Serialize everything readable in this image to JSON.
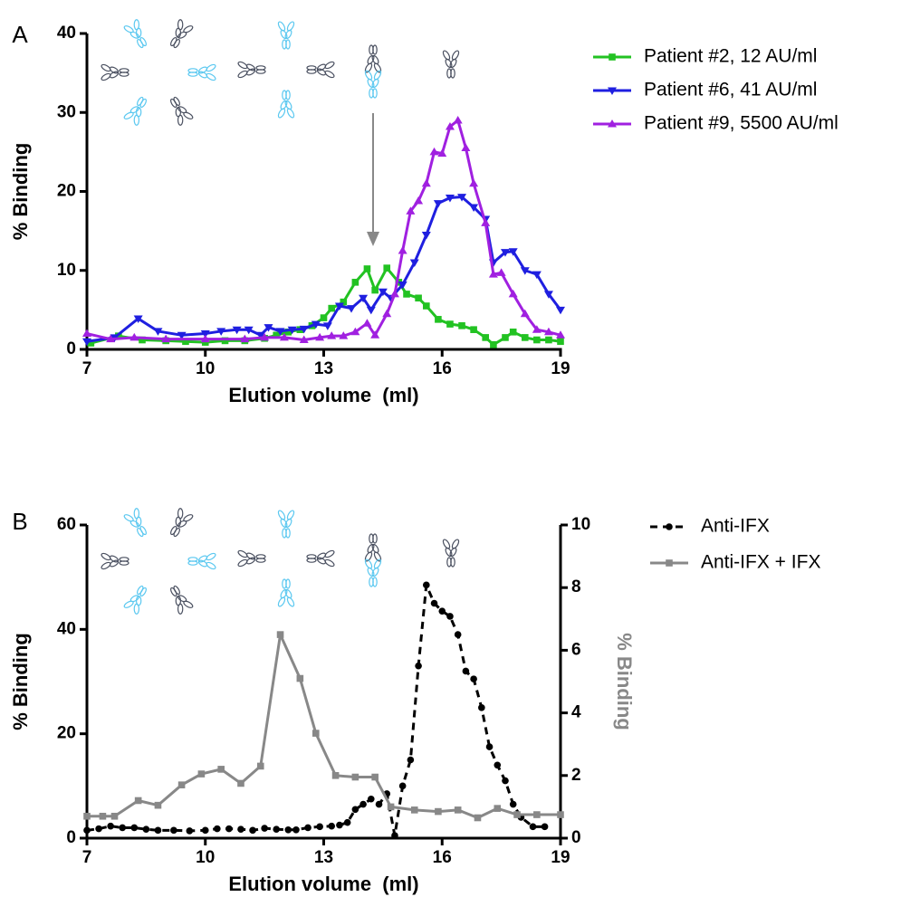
{
  "chart_data": [
    {
      "type": "line",
      "panel_label": "A",
      "x_label": "Elution volume  (ml)",
      "y_label": "% Binding",
      "xlim": [
        7,
        19
      ],
      "xticks": [
        7,
        10,
        13,
        16,
        19
      ],
      "ylim": [
        0,
        40
      ],
      "yticks": [
        0,
        10,
        20,
        30,
        40
      ],
      "legend": "upper right",
      "series": [
        {
          "name": "Patient #2, 12 AU/ml",
          "color": "#22c222",
          "marker": "square",
          "line_style": "solid",
          "x": [
            7.1,
            7.8,
            8.4,
            9.0,
            9.5,
            10.0,
            10.5,
            11.0,
            11.5,
            11.8,
            12.1,
            12.4,
            12.7,
            13.0,
            13.2,
            13.5,
            13.8,
            14.1,
            14.3,
            14.6,
            14.9,
            15.1,
            15.4,
            15.6,
            15.9,
            16.2,
            16.5,
            16.8,
            17.1,
            17.3,
            17.6,
            17.8,
            18.1,
            18.4,
            18.7,
            19.0
          ],
          "values": [
            0.8,
            1.7,
            1.2,
            1.1,
            1.0,
            0.9,
            1.1,
            1.1,
            1.4,
            1.8,
            2.2,
            2.5,
            3.0,
            4.0,
            5.2,
            6.0,
            8.5,
            10.2,
            7.5,
            10.3,
            8.5,
            7.0,
            6.5,
            5.5,
            3.8,
            3.2,
            3.0,
            2.5,
            1.5,
            0.6,
            1.5,
            2.2,
            1.5,
            1.2,
            1.2,
            1.0
          ]
        },
        {
          "name": "Patient #6, 41 AU/ml",
          "color": "#1f1fe0",
          "marker": "triangle-down",
          "line_style": "solid",
          "x": [
            7.0,
            7.7,
            8.3,
            8.8,
            9.4,
            10.0,
            10.4,
            10.8,
            11.1,
            11.4,
            11.6,
            11.9,
            12.2,
            12.5,
            12.8,
            13.1,
            13.4,
            13.7,
            14.0,
            14.2,
            14.5,
            14.7,
            15.0,
            15.3,
            15.6,
            15.9,
            16.2,
            16.5,
            16.8,
            17.1,
            17.3,
            17.6,
            17.8,
            18.1,
            18.4,
            18.7,
            19.0
          ],
          "values": [
            1.0,
            1.5,
            3.9,
            2.3,
            1.8,
            2.0,
            2.3,
            2.5,
            2.5,
            1.8,
            2.8,
            2.3,
            2.5,
            2.6,
            3.2,
            3.0,
            5.5,
            5.2,
            6.5,
            5.0,
            7.3,
            6.5,
            8.2,
            11.0,
            14.5,
            18.5,
            19.2,
            19.3,
            18.0,
            16.5,
            11.0,
            12.3,
            12.4,
            10.0,
            9.5,
            7.0,
            5.0
          ]
        },
        {
          "name": "Patient #9, 5500 AU/ml",
          "color": "#a020e0",
          "marker": "triangle-up",
          "line_style": "solid",
          "x": [
            7.0,
            7.6,
            8.2,
            9.0,
            10.0,
            11.0,
            11.5,
            12.0,
            12.5,
            12.9,
            13.2,
            13.5,
            13.8,
            14.1,
            14.3,
            14.6,
            14.8,
            15.0,
            15.2,
            15.4,
            15.6,
            15.8,
            16.0,
            16.2,
            16.4,
            16.6,
            16.8,
            17.1,
            17.3,
            17.5,
            17.8,
            18.1,
            18.4,
            18.7,
            19.0
          ],
          "values": [
            2.0,
            1.3,
            1.5,
            1.3,
            1.3,
            1.3,
            1.5,
            1.5,
            1.2,
            1.5,
            1.7,
            1.7,
            2.2,
            3.3,
            1.8,
            4.5,
            7.0,
            12.5,
            17.5,
            18.8,
            21.0,
            25.0,
            24.8,
            28.2,
            29.0,
            25.5,
            21.0,
            16.0,
            9.5,
            9.7,
            7.0,
            4.5,
            2.5,
            2.2,
            1.8
          ]
        }
      ]
    },
    {
      "type": "line",
      "panel_label": "B",
      "x_label": "Elution volume  (ml)",
      "y_label": "% Binding",
      "y2_label": "% Binding",
      "xlim": [
        7,
        19
      ],
      "xticks": [
        7,
        10,
        13,
        16,
        19
      ],
      "ylim": [
        0,
        60
      ],
      "yticks": [
        0,
        20,
        40,
        60
      ],
      "y2lim": [
        0,
        10
      ],
      "y2ticks": [
        0,
        2,
        4,
        6,
        8,
        10
      ],
      "y2_color": "#888888",
      "legend": "upper right",
      "series": [
        {
          "name": "Anti-IFX",
          "color": "#000000",
          "marker": "circle",
          "line_style": "dashed",
          "x": [
            7.0,
            7.3,
            7.6,
            7.9,
            8.2,
            8.5,
            8.8,
            9.2,
            9.6,
            10.0,
            10.3,
            10.6,
            10.9,
            11.2,
            11.5,
            11.8,
            12.1,
            12.3,
            12.6,
            12.9,
            13.2,
            13.4,
            13.6,
            13.8,
            14.0,
            14.2,
            14.4,
            14.6,
            14.8,
            15.0,
            15.2,
            15.4,
            15.6,
            15.8,
            16.0,
            16.2,
            16.4,
            16.6,
            16.8,
            17.0,
            17.2,
            17.4,
            17.6,
            17.8,
            18.0,
            18.3,
            18.6
          ],
          "values": [
            1.5,
            1.8,
            2.3,
            2.0,
            2.0,
            1.7,
            1.5,
            1.5,
            1.4,
            1.5,
            1.8,
            1.8,
            1.7,
            1.5,
            1.9,
            1.7,
            1.6,
            1.6,
            2.0,
            2.2,
            2.3,
            2.5,
            3.0,
            5.5,
            6.5,
            7.5,
            6.5,
            8.5,
            0.5,
            10.0,
            15.0,
            33.0,
            48.5,
            45.0,
            43.5,
            42.5,
            39.0,
            32.0,
            30.5,
            25.0,
            17.5,
            14.0,
            11.0,
            6.5,
            4.0,
            2.2,
            2.2
          ]
        },
        {
          "name": "Anti-IFX + IFX",
          "color": "#888888",
          "marker": "square",
          "line_style": "solid",
          "axis": "y2",
          "x": [
            7.0,
            7.4,
            7.7,
            8.3,
            8.8,
            9.4,
            9.9,
            10.4,
            10.9,
            11.4,
            11.9,
            12.4,
            12.8,
            13.3,
            13.8,
            14.3,
            14.7,
            15.3,
            15.9,
            16.4,
            16.9,
            17.4,
            17.9,
            18.4,
            19.0
          ],
          "values": [
            0.7,
            0.7,
            0.7,
            1.2,
            1.05,
            1.7,
            2.05,
            2.2,
            1.75,
            2.3,
            6.5,
            5.1,
            3.35,
            2.0,
            1.95,
            1.95,
            1.0,
            0.9,
            0.85,
            0.9,
            0.65,
            0.95,
            0.75,
            0.75,
            0.75
          ]
        }
      ]
    }
  ]
}
